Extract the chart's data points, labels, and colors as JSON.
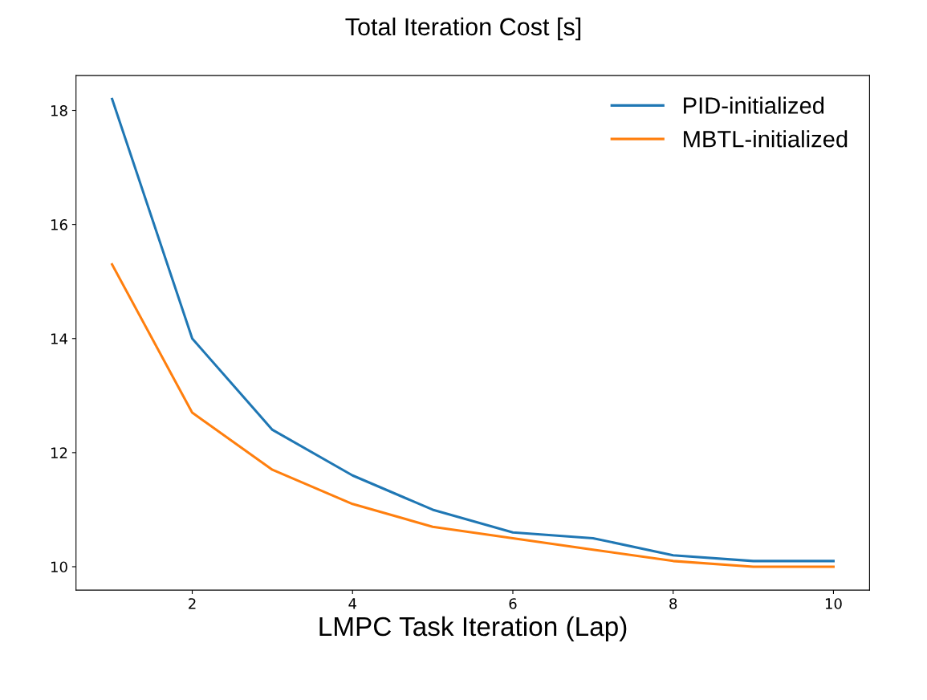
{
  "chart_data": {
    "type": "line",
    "title": "Total Iteration Cost [s]",
    "xlabel": "LMPC Task Iteration (Lap)",
    "x": [
      1,
      2,
      3,
      4,
      5,
      6,
      7,
      8,
      9,
      10
    ],
    "series": [
      {
        "name": "PID-initialized",
        "color": "#1f77b4",
        "values": [
          18.2,
          14.0,
          12.4,
          11.6,
          11.0,
          10.6,
          10.5,
          10.2,
          10.1,
          10.1
        ]
      },
      {
        "name": "MBTL-initialized",
        "color": "#ff7f0e",
        "values": [
          15.3,
          12.7,
          11.7,
          11.1,
          10.7,
          10.5,
          10.3,
          10.1,
          10.0,
          10.0
        ]
      }
    ],
    "xlim": [
      0.55,
      10.45
    ],
    "ylim": [
      9.59,
      18.61
    ],
    "xticks": [
      2,
      4,
      6,
      8,
      10
    ],
    "yticks": [
      10,
      12,
      14,
      16,
      18
    ],
    "legend": "top right",
    "grid": false,
    "marker": "none",
    "line_style": "solid"
  }
}
